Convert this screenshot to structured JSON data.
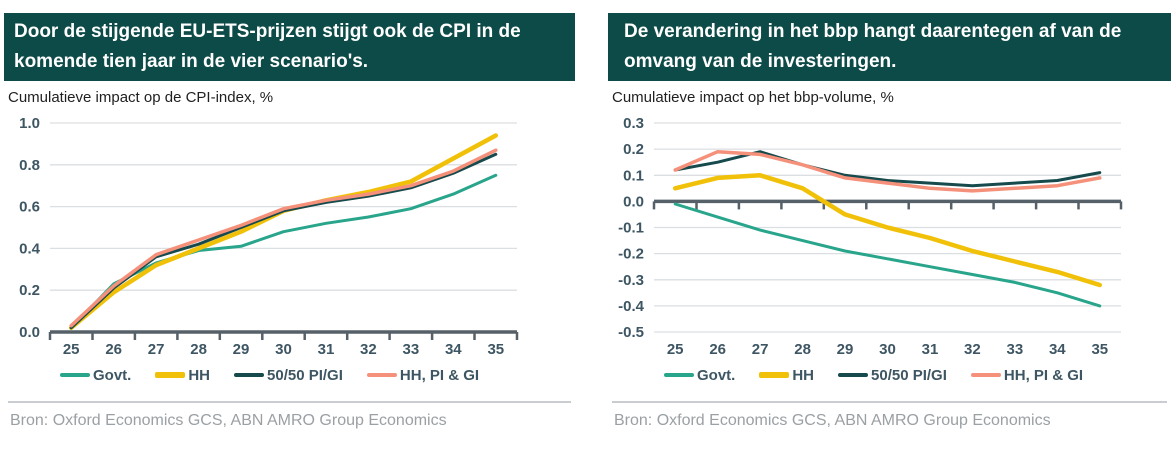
{
  "theme": {
    "banner_bg": "#0d4b49",
    "banner_text": "#ffffff",
    "axis_color": "#566069",
    "grid_color": "#dcdfe2",
    "tick_label_color": "#3e5663",
    "legend_text_color": "#3e5663",
    "source_text_color": "#9ba0a4",
    "divider_color": "#c9cdd1"
  },
  "panels": [
    {
      "source": "Bron: Oxford Economics GCS, ABN AMRO Group Economics"
    },
    {
      "source": "Bron: Oxford Economics GCS, ABN AMRO Group Economics"
    }
  ],
  "chart_data": [
    {
      "type": "line",
      "title": "Door de stijgende EU-ETS-prijzen stijgt ook de CPI in de komende tien jaar in de vier scenario's.",
      "subtitle": "Cumulatieve impact op de CPI-index, %",
      "x_labels": [
        "25",
        "26",
        "27",
        "28",
        "29",
        "30",
        "31",
        "32",
        "33",
        "34",
        "35"
      ],
      "ylim": [
        0.0,
        1.0
      ],
      "yticks": [
        1.0,
        0.8,
        0.6,
        0.4,
        0.2,
        0.0
      ],
      "axis_at": 0.0,
      "grid": true,
      "legend_position": "bottom",
      "series": [
        {
          "name": "Govt.",
          "color": "#29a58c",
          "line_width": 3,
          "values": [
            0.02,
            0.23,
            0.33,
            0.39,
            0.41,
            0.48,
            0.52,
            0.55,
            0.59,
            0.66,
            0.75
          ]
        },
        {
          "name": "HH",
          "color": "#f0c108",
          "line_width": 4.5,
          "values": [
            0.02,
            0.19,
            0.32,
            0.4,
            0.48,
            0.58,
            0.63,
            0.67,
            0.72,
            0.83,
            0.94
          ]
        },
        {
          "name": "50/50 PI/GI",
          "color": "#164a4c",
          "line_width": 3,
          "values": [
            0.02,
            0.21,
            0.36,
            0.42,
            0.5,
            0.58,
            0.62,
            0.65,
            0.69,
            0.76,
            0.85
          ]
        },
        {
          "name": "HH, PI & GI",
          "color": "#f5917a",
          "line_width": 3.5,
          "values": [
            0.03,
            0.22,
            0.37,
            0.44,
            0.51,
            0.59,
            0.63,
            0.66,
            0.7,
            0.77,
            0.87
          ]
        }
      ]
    },
    {
      "type": "line",
      "title": "De verandering in het bbp hangt daarentegen af van de omvang van de investeringen.",
      "subtitle": "Cumulatieve impact op het bbp-volume, %",
      "x_labels": [
        "25",
        "26",
        "27",
        "28",
        "29",
        "30",
        "31",
        "32",
        "33",
        "34",
        "35"
      ],
      "ylim": [
        -0.5,
        0.3
      ],
      "yticks": [
        0.3,
        0.2,
        0.1,
        0.0,
        -0.1,
        -0.2,
        -0.3,
        -0.4,
        -0.5
      ],
      "axis_at": 0.0,
      "grid": true,
      "legend_position": "bottom",
      "series": [
        {
          "name": "Govt.",
          "color": "#29a58c",
          "line_width": 3,
          "values": [
            -0.01,
            -0.06,
            -0.11,
            -0.15,
            -0.19,
            -0.22,
            -0.25,
            -0.28,
            -0.31,
            -0.35,
            -0.4
          ]
        },
        {
          "name": "HH",
          "color": "#f0c108",
          "line_width": 4.5,
          "values": [
            0.05,
            0.09,
            0.1,
            0.05,
            -0.05,
            -0.1,
            -0.14,
            -0.19,
            -0.23,
            -0.27,
            -0.32
          ]
        },
        {
          "name": "50/50 PI/GI",
          "color": "#164a4c",
          "line_width": 3,
          "values": [
            0.12,
            0.15,
            0.19,
            0.14,
            0.1,
            0.08,
            0.07,
            0.06,
            0.07,
            0.08,
            0.11
          ]
        },
        {
          "name": "HH, PI & GI",
          "color": "#f5917a",
          "line_width": 3.5,
          "values": [
            0.12,
            0.19,
            0.18,
            0.14,
            0.09,
            0.07,
            0.05,
            0.04,
            0.05,
            0.06,
            0.09
          ]
        }
      ]
    }
  ]
}
